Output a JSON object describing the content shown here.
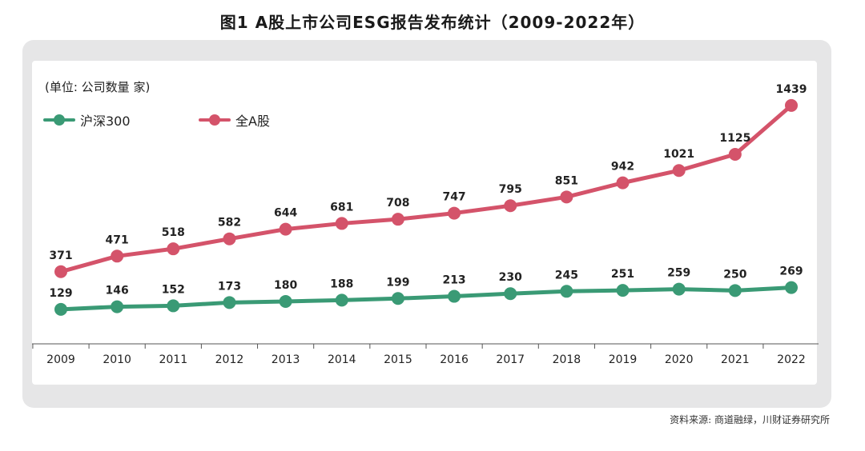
{
  "title": "图1 A股上市公司ESG报告发布统计（2009-2022年）",
  "unit_label": "(单位: 公司数量 家)",
  "source": "资料来源: 商道融绿，川财证券研究所",
  "colors": {
    "series_1": "#3a9a75",
    "series_2": "#d4536a"
  },
  "chart_data": {
    "type": "line",
    "title": "图1 A股上市公司ESG报告发布统计（2009-2022年）",
    "xlabel": "",
    "ylabel": "",
    "unit": "(单位: 公司数量 家)",
    "legend_position": "top-left",
    "grid": false,
    "ylim": [
      0,
      1500
    ],
    "categories": [
      "2009",
      "2010",
      "2011",
      "2012",
      "2013",
      "2014",
      "2015",
      "2016",
      "2017",
      "2018",
      "2019",
      "2020",
      "2021",
      "2022"
    ],
    "series": [
      {
        "name": "沪深300",
        "color": "#3a9a75",
        "values": [
          129,
          146,
          152,
          173,
          180,
          188,
          199,
          213,
          230,
          245,
          251,
          259,
          250,
          269
        ]
      },
      {
        "name": "全A股",
        "color": "#d4536a",
        "values": [
          371,
          471,
          518,
          582,
          644,
          681,
          708,
          747,
          795,
          851,
          942,
          1021,
          1125,
          1439
        ]
      }
    ]
  }
}
